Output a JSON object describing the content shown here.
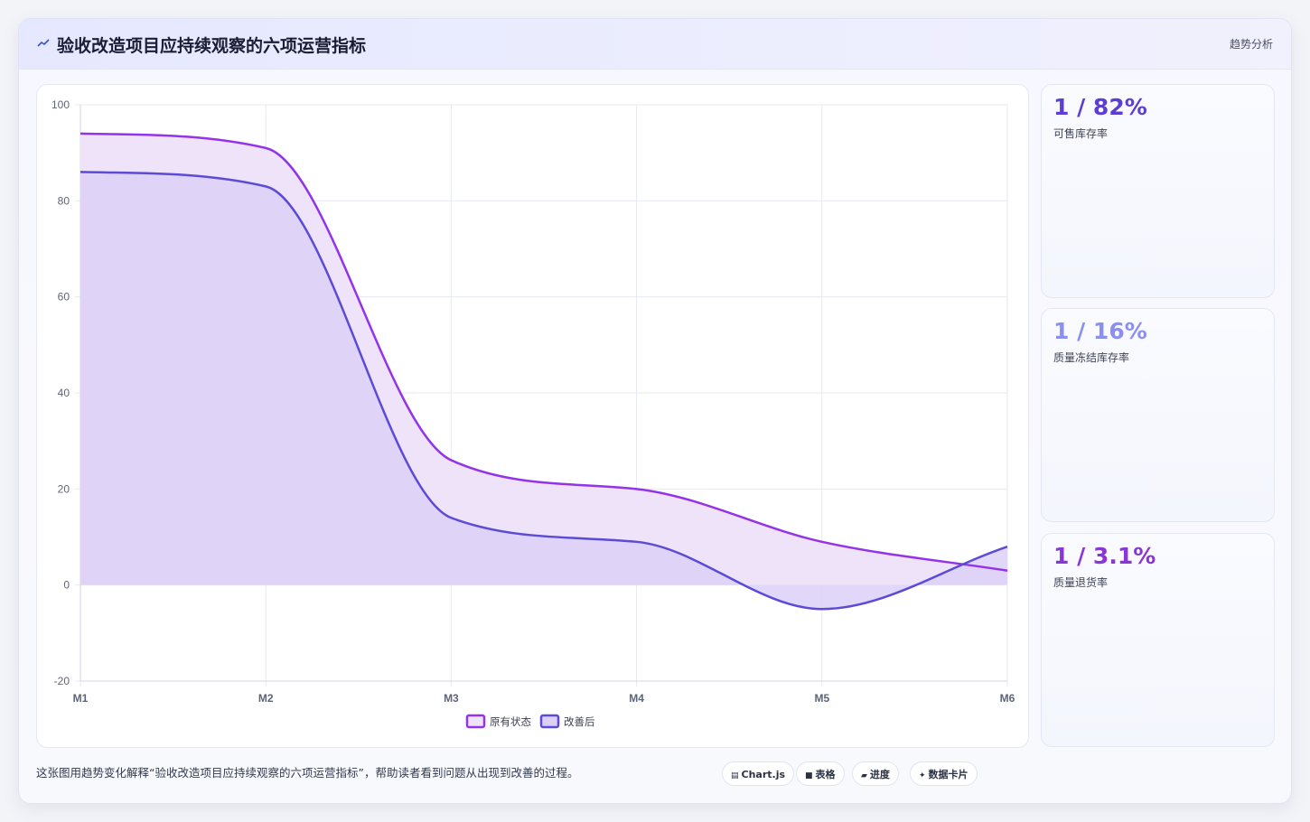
{
  "header": {
    "icon": "trend-line-icon",
    "title": "验收改造项目应持续观察的六项运营指标",
    "tag": "趋势分析"
  },
  "colors": {
    "series_original": "#9333ea",
    "series_improved": "#5b4bd6",
    "fill_original": "#efe3fa",
    "fill_improved": "#dcd0f7",
    "stat1": "#5b3fd4",
    "stat2": "#8a8ff0",
    "stat3": "#8a36d6"
  },
  "chart_data": {
    "type": "area",
    "x": [
      "M1",
      "M2",
      "M3",
      "M4",
      "M5",
      "M6"
    ],
    "ylim": [
      -20,
      100
    ],
    "yticks": [
      -20,
      0,
      20,
      40,
      60,
      80,
      100
    ],
    "grid": true,
    "legend_position": "bottom-center",
    "series": [
      {
        "name": "原有状态",
        "values": [
          94,
          91,
          26,
          20,
          9,
          3
        ]
      },
      {
        "name": "改善后",
        "values": [
          86,
          83,
          14,
          9,
          -5,
          8
        ]
      }
    ]
  },
  "stats": [
    {
      "value": "1 / 82%",
      "label": "可售库存率"
    },
    {
      "value": "1 / 16%",
      "label": "质量冻结库存率"
    },
    {
      "value": "1 / 3.1%",
      "label": "质量退货率"
    }
  ],
  "footer": {
    "description": "这张图用趋势变化解释“验收改造项目应持续观察的六项运营指标”，帮助读者看到问题从出现到改善的过程。",
    "pills": [
      {
        "icon": "chart-icon",
        "glyph": "▤",
        "label": "Chart.js"
      },
      {
        "icon": "table-icon",
        "glyph": "■",
        "label": "表格"
      },
      {
        "icon": "progress-icon",
        "glyph": "▰",
        "label": "进度"
      },
      {
        "icon": "sparkle-icon",
        "glyph": "✦",
        "label": "数据卡片"
      }
    ]
  }
}
